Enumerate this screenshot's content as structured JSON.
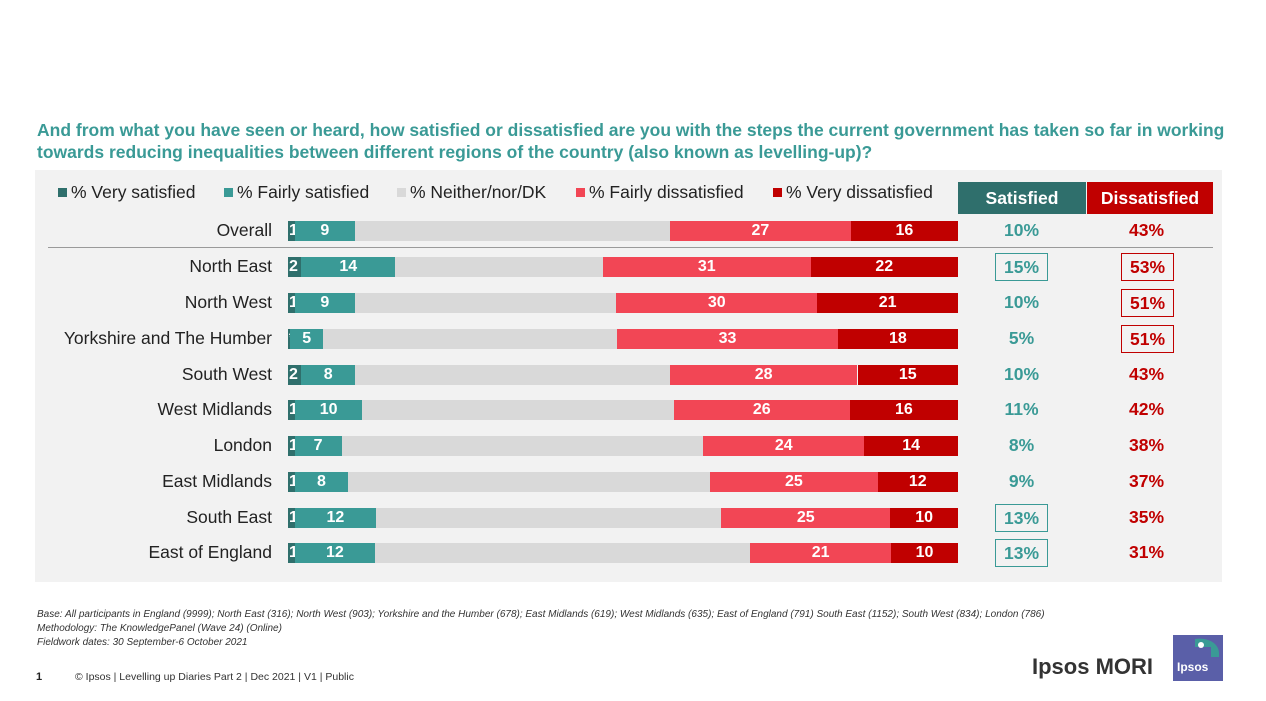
{
  "question": "And from what you have seen or heard, how satisfied or dissatisfied are you with the steps the current government has taken so far in working towards reducing inequalities between different regions of the country (also known as levelling-up)?",
  "legend": [
    {
      "label": "% Very satisfied",
      "color": "#2f6f6c"
    },
    {
      "label": "% Fairly satisfied",
      "color": "#3a9a96"
    },
    {
      "label": "% Neither/nor/DK",
      "color": "#d9d9d9"
    },
    {
      "label": "% Fairly dissatisfied",
      "color": "#f24655"
    },
    {
      "label": "% Very dissatisfied",
      "color": "#c00000"
    }
  ],
  "headers": {
    "satisfied": "Satisfied",
    "dissatisfied": "Dissatisfied",
    "satisfied_color": "#2f6f6c",
    "dissatisfied_color": "#c00000"
  },
  "chart_data": {
    "type": "bar",
    "orientation": "horizontal-stacked-100",
    "categories": [
      "Overall",
      "North East",
      "North West",
      "Yorkshire and The Humber",
      "South West",
      "West Midlands",
      "London",
      "East Midlands",
      "South East",
      "East of England"
    ],
    "series": [
      {
        "name": "% Very satisfied",
        "values": [
          1,
          2,
          1,
          0.3,
          2,
          1,
          1,
          1,
          1,
          1
        ],
        "labels": [
          "1",
          "2",
          "1",
          "*",
          "2",
          "1",
          "1",
          "1",
          "1",
          "1"
        ]
      },
      {
        "name": "% Fairly satisfied",
        "values": [
          9,
          14,
          9,
          5,
          8,
          10,
          7,
          8,
          12,
          12
        ],
        "labels": [
          "9",
          "14",
          "9",
          "5",
          "8",
          "10",
          "7",
          "8",
          "12",
          "12"
        ]
      },
      {
        "name": "% Neither/nor/DK",
        "values": [
          47,
          31,
          39,
          44,
          47,
          46,
          54,
          54,
          51,
          56
        ],
        "labels": [
          "",
          "",
          "",
          "",
          "",
          "",
          "",
          "",
          "",
          ""
        ]
      },
      {
        "name": "% Fairly dissatisfied",
        "values": [
          27,
          31,
          30,
          33,
          28,
          26,
          24,
          25,
          25,
          21
        ],
        "labels": [
          "27",
          "31",
          "30",
          "33",
          "28",
          "26",
          "24",
          "25",
          "25",
          "21"
        ]
      },
      {
        "name": "% Very dissatisfied",
        "values": [
          16,
          22,
          21,
          18,
          15,
          16,
          14,
          12,
          10,
          10
        ],
        "labels": [
          "16",
          "22",
          "21",
          "18",
          "15",
          "16",
          "14",
          "12",
          "10",
          "10"
        ]
      }
    ],
    "net_satisfied": [
      "10%",
      "15%",
      "10%",
      "5%",
      "10%",
      "11%",
      "8%",
      "9%",
      "13%",
      "13%"
    ],
    "net_dissatisfied": [
      "43%",
      "53%",
      "51%",
      "51%",
      "43%",
      "42%",
      "38%",
      "37%",
      "35%",
      "31%"
    ],
    "boxed_satisfied": [
      false,
      true,
      false,
      false,
      false,
      false,
      false,
      false,
      true,
      true
    ],
    "boxed_dissatisfied": [
      false,
      true,
      true,
      true,
      false,
      false,
      false,
      false,
      false,
      false
    ],
    "xlim": [
      0,
      100
    ]
  },
  "footnotes": {
    "base": "Base: All participants in England (9999); North East (316); North West (903); Yorkshire and the Humber (678); East Midlands (619); West Midlands (635); East of England (791) South East (1152); South West (834); London (786)",
    "methodology": "Methodology: The KnowledgePanel (Wave 24) (Online)",
    "fieldwork": "Fieldwork dates: 30 September-6 October 2021"
  },
  "footer": {
    "page_number": "1",
    "text": "© Ipsos | Levelling up Diaries Part 2 | Dec 2021 | V1 | Public"
  },
  "brand": {
    "name": "Ipsos MORI",
    "logo_text": "Ipsos",
    "logo_color": "#5a5fa8"
  }
}
